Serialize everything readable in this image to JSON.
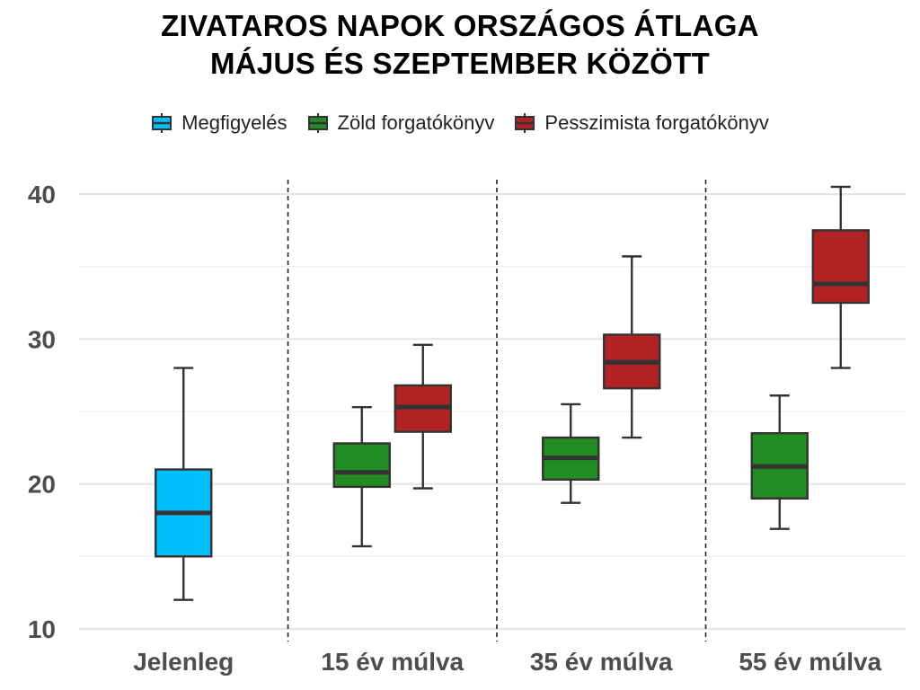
{
  "chart_data": {
    "type": "boxplot",
    "title": [
      "ZIVATAROS NAPOK ORSZÁGOS ÁTLAGA",
      "MÁJUS ÉS SZEPTEMBER KÖZÖTT"
    ],
    "xlabel": "",
    "ylabel": "",
    "ylim": [
      9.5,
      41.5
    ],
    "yticks": [
      10,
      20,
      30,
      40
    ],
    "grid": true,
    "legend_position": "top",
    "categories": [
      "Jelenleg",
      "15 év múlva",
      "35 év múlva",
      "55 év múlva"
    ],
    "series": [
      {
        "name": "Megfigyelés",
        "color": "#00bfff",
        "boxes": [
          {
            "category": "Jelenleg",
            "min": 12,
            "q1": 15,
            "median": 18,
            "q3": 21,
            "max": 28
          }
        ]
      },
      {
        "name": "Zöld forgatókönyv",
        "color": "#228b22",
        "boxes": [
          {
            "category": "15 év múlva",
            "min": 15.7,
            "q1": 19.8,
            "median": 20.8,
            "q3": 22.8,
            "max": 25.3
          },
          {
            "category": "35 év múlva",
            "min": 18.7,
            "q1": 20.3,
            "median": 21.8,
            "q3": 23.2,
            "max": 25.5
          },
          {
            "category": "55 év múlva",
            "min": 16.9,
            "q1": 19.0,
            "median": 21.2,
            "q3": 23.5,
            "max": 26.1
          }
        ]
      },
      {
        "name": "Pesszimista forgatókönyv",
        "color": "#b22222",
        "boxes": [
          {
            "category": "15 év múlva",
            "min": 19.7,
            "q1": 23.6,
            "median": 25.3,
            "q3": 26.8,
            "max": 29.6
          },
          {
            "category": "35 év múlva",
            "min": 23.2,
            "q1": 26.6,
            "median": 28.4,
            "q3": 30.3,
            "max": 35.7
          },
          {
            "category": "55 év múlva",
            "min": 28.0,
            "q1": 32.5,
            "median": 33.8,
            "q3": 37.5,
            "max": 40.5
          }
        ]
      }
    ]
  }
}
